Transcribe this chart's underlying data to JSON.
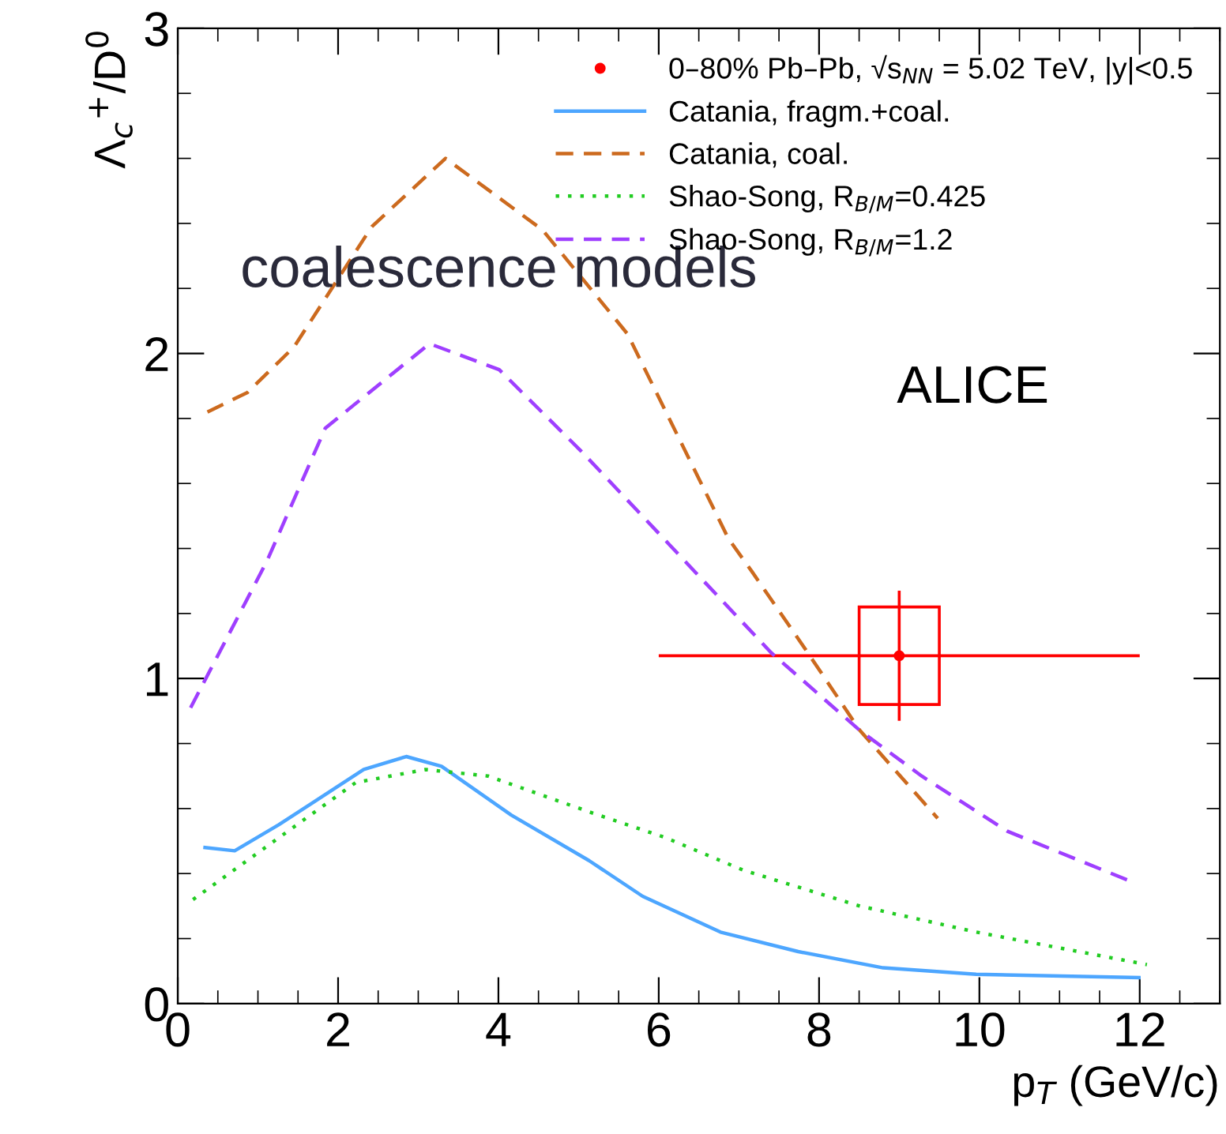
{
  "chart_data": {
    "type": "line",
    "xlabel": "p$_{T}$ (GeV/c)",
    "ylabel": "Λ$_{c}$$^{+}$/D$^{0}$",
    "xlim": [
      0,
      13
    ],
    "ylim": [
      0,
      3
    ],
    "xticks": [
      0,
      2,
      4,
      6,
      8,
      10,
      12
    ],
    "yticks": [
      0,
      1,
      2,
      3
    ],
    "grid": false,
    "legend": "top right",
    "annotations": [
      "coalescence models",
      "ALICE"
    ],
    "series": [
      {
        "name": "0–80% Pb–Pb, √s$_{NN}$ = 5.02 TeV, |y|<0.5",
        "type": "scatter",
        "color": "#ff0000",
        "marker": "circle",
        "x": [
          9
        ],
        "values": [
          1.07
        ],
        "errors": [
          0.2
        ],
        "xerrors": [
          3
        ]
      },
      {
        "type": "bar",
        "color": "#ff0000",
        "x": [
          9
        ],
        "base": [
          0.92
        ],
        "values": [
          0.3
        ]
      },
      {
        "name": "Catania, fragm.+coal.",
        "color": "#4da6ff",
        "line_style": "solid",
        "x": [
          0.34,
          0.71,
          1.26,
          2.32,
          2.85,
          3.29,
          4.16,
          5.13,
          5.8,
          6.77,
          7.74,
          8.8,
          9.96,
          11.99
        ],
        "values": [
          0.48,
          0.47,
          0.55,
          0.72,
          0.76,
          0.73,
          0.58,
          0.44,
          0.33,
          0.22,
          0.16,
          0.11,
          0.09,
          0.08
        ]
      },
      {
        "name": "Catania, coal.",
        "color": "#cc6a1e",
        "line_style": "dashed",
        "x": [
          0.37,
          0.87,
          1.45,
          2.42,
          3.34,
          4.55,
          5.61,
          6.87,
          7.16,
          7.83,
          8.51,
          9.48
        ],
        "values": [
          1.82,
          1.88,
          2.02,
          2.39,
          2.6,
          2.38,
          2.06,
          1.43,
          1.33,
          1.09,
          0.84,
          0.57
        ]
      },
      {
        "name": "Shao-Song, R$_{B/M}$=0.425",
        "color": "#22cc22",
        "line_style": "dotted",
        "x": [
          0.19,
          1.26,
          2.22,
          3.09,
          3.87,
          5.13,
          6.09,
          7.06,
          8.51,
          9.96,
          12.09
        ],
        "values": [
          0.32,
          0.51,
          0.68,
          0.72,
          0.7,
          0.59,
          0.51,
          0.41,
          0.3,
          0.22,
          0.12
        ]
      },
      {
        "name": "Shao-Song, R$_{B/M}$=1.2",
        "color": "#9f3fff",
        "line_style": "dashed",
        "x": [
          0.16,
          1.11,
          1.84,
          3.14,
          4.01,
          5.03,
          6.14,
          7.4,
          8.51,
          9.28,
          10.35,
          11.85
        ],
        "values": [
          0.91,
          1.36,
          1.77,
          2.03,
          1.95,
          1.7,
          1.41,
          1.08,
          0.84,
          0.7,
          0.53,
          0.38
        ]
      }
    ]
  }
}
